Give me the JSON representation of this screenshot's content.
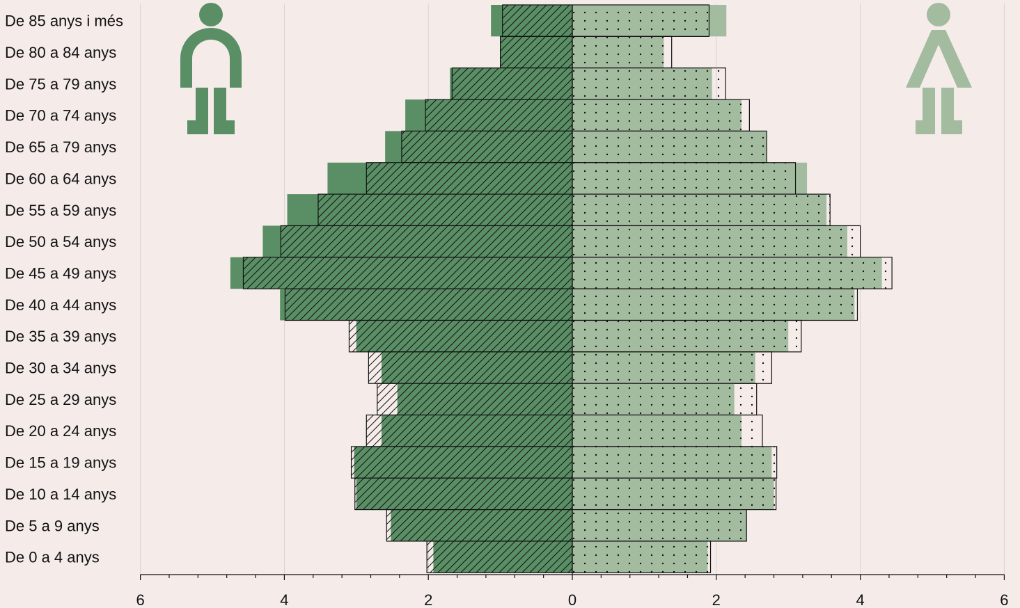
{
  "chart_data": {
    "type": "bar",
    "orientation": "horizontal",
    "layout": "population-pyramid",
    "title": "",
    "xlabel": "",
    "ylabel": "",
    "xlim": [
      -6,
      6
    ],
    "grid": true,
    "categories": [
      "De 85 anys i més",
      "De 80 a 84 anys",
      "De 75 a 79 anys",
      "De 70 a 74 anys",
      "De 65 a 79 anys",
      "De 60 a 64 anys",
      "De 55 a 59 anys",
      "De 50 a 54 anys",
      "De 45 a 49 anys",
      "De 40 a 44 anys",
      "De 35 a 39 anys",
      "De 30 a 34 anys",
      "De 25 a 29 anys",
      "De 20 a 24 anys",
      "De 15 a 19 anys",
      "De 10 a 14 anys",
      "De 5 a 9 anys",
      "De 0 a 4 anys"
    ],
    "series": [
      {
        "side": "left",
        "style": "solid",
        "color": "#5a8f65",
        "values": [
          1.13,
          1.0,
          1.7,
          2.32,
          2.6,
          3.4,
          3.96,
          4.3,
          4.75,
          4.06,
          3.0,
          2.65,
          2.43,
          2.65,
          3.03,
          3.0,
          2.52,
          1.93
        ]
      },
      {
        "side": "left",
        "style": "hatched",
        "color": "#5a8f65",
        "values": [
          0.97,
          1.0,
          1.67,
          2.04,
          2.37,
          2.86,
          3.53,
          4.05,
          4.57,
          3.99,
          3.1,
          2.83,
          2.71,
          2.86,
          3.07,
          3.02,
          2.58,
          2.02
        ]
      },
      {
        "side": "right",
        "style": "solid",
        "color": "#a3bb9f",
        "values": [
          2.14,
          1.27,
          1.94,
          2.35,
          2.7,
          3.26,
          3.53,
          3.82,
          4.3,
          3.92,
          3.0,
          2.54,
          2.25,
          2.35,
          2.77,
          2.8,
          2.42,
          1.88
        ]
      },
      {
        "side": "right",
        "style": "dotted",
        "color": "#a3bb9f",
        "values": [
          1.9,
          1.38,
          2.13,
          2.46,
          2.7,
          3.1,
          3.58,
          4.0,
          4.44,
          3.96,
          3.18,
          2.77,
          2.56,
          2.64,
          2.84,
          2.83,
          2.42,
          1.92
        ]
      }
    ],
    "x_ticks": [
      "6",
      "4",
      "2",
      "0",
      "2",
      "4",
      "6"
    ],
    "x_tick_values": [
      -6,
      -4,
      -2,
      0,
      2,
      4,
      6
    ],
    "colors": {
      "background": "#f5ecea",
      "male": "#5a8f65",
      "female": "#a3bb9f",
      "grid": "#d8d2d0"
    },
    "icons": {
      "left": "male-figure-icon",
      "right": "female-figure-icon"
    }
  }
}
